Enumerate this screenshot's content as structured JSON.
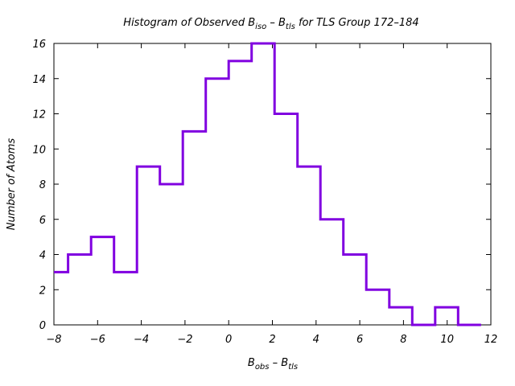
{
  "chart_data": {
    "type": "histogram",
    "title": {
      "prefix": "Histogram of Observed B",
      "sub1": "iso",
      "mid": " – B",
      "sub2": "tls",
      "suffix": " for TLS Group 172–184"
    },
    "xlabel": {
      "main": "B",
      "sub1": "obs",
      "mid": " – B",
      "sub2": "tls"
    },
    "ylabel": "Number of Atoms",
    "xlim": [
      -8,
      12
    ],
    "ylim": [
      0,
      16
    ],
    "xticks": [
      "−8",
      "−6",
      "−4",
      "−2",
      "0",
      "2",
      "4",
      "6",
      "8",
      "10",
      "12"
    ],
    "yticks": [
      "0",
      "2",
      "4",
      "6",
      "8",
      "10",
      "12",
      "14",
      "16"
    ],
    "bin_edges": [
      -8.0,
      -7.35,
      -6.3,
      -5.25,
      -4.2,
      -3.15,
      -2.1,
      -1.05,
      0.0,
      1.05,
      2.1,
      3.15,
      4.2,
      5.25,
      6.3,
      7.35,
      8.4,
      9.45,
      10.5,
      11.55
    ],
    "counts": [
      3,
      4,
      5,
      3,
      9,
      8,
      11,
      14,
      15,
      16,
      12,
      9,
      6,
      4,
      2,
      1,
      0,
      1,
      0
    ],
    "color": "#8000e0",
    "grid": false
  }
}
